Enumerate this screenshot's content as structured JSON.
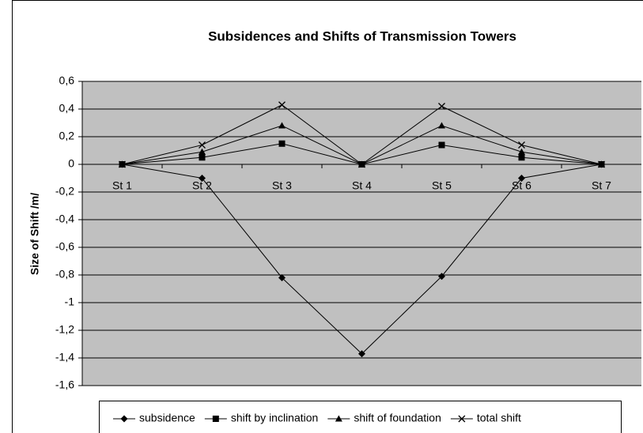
{
  "chart_data": {
    "type": "line",
    "title": "Subsidences and Shifts of Transmission Towers",
    "y_label": "Size of Shift /m/",
    "categories": [
      "St 1",
      "St 2",
      "St 3",
      "St 4",
      "St 5",
      "St 6",
      "St 7"
    ],
    "series": [
      {
        "name": "subsidence",
        "color": "#000000",
        "marker": "diamond",
        "values": [
          0,
          -0.1,
          -0.82,
          -1.37,
          -0.81,
          -0.1,
          0
        ]
      },
      {
        "name": "shift by inclination",
        "color": "#000000",
        "marker": "square",
        "values": [
          0,
          0.05,
          0.15,
          0,
          0.14,
          0.05,
          0
        ]
      },
      {
        "name": "shift of foundation",
        "color": "#000000",
        "marker": "triangle",
        "values": [
          0,
          0.09,
          0.28,
          0,
          0.28,
          0.09,
          0
        ]
      },
      {
        "name": "total shift",
        "color": "#000000",
        "marker": "x",
        "values": [
          0,
          0.14,
          0.43,
          0,
          0.42,
          0.14,
          0
        ]
      }
    ],
    "ylim": [
      -1.6,
      0.6
    ],
    "yticks": [
      {
        "value": 0.6,
        "label": "0,6"
      },
      {
        "value": 0.4,
        "label": "0,4"
      },
      {
        "value": 0.2,
        "label": "0,2"
      },
      0,
      {
        "value": -0.2,
        "label": "-0,2"
      },
      {
        "value": -0.4,
        "label": "-0,4"
      },
      {
        "value": -0.6,
        "label": "-0,6"
      },
      {
        "value": -0.8,
        "label": "-0,8"
      },
      -1,
      {
        "value": -1.2,
        "label": "-1,2"
      },
      {
        "value": -1.4,
        "label": "-1,4"
      },
      {
        "value": -1.6,
        "label": "-1,6"
      }
    ],
    "grid": true,
    "legend": "bottom",
    "plot_background": "#c0c0c0"
  }
}
